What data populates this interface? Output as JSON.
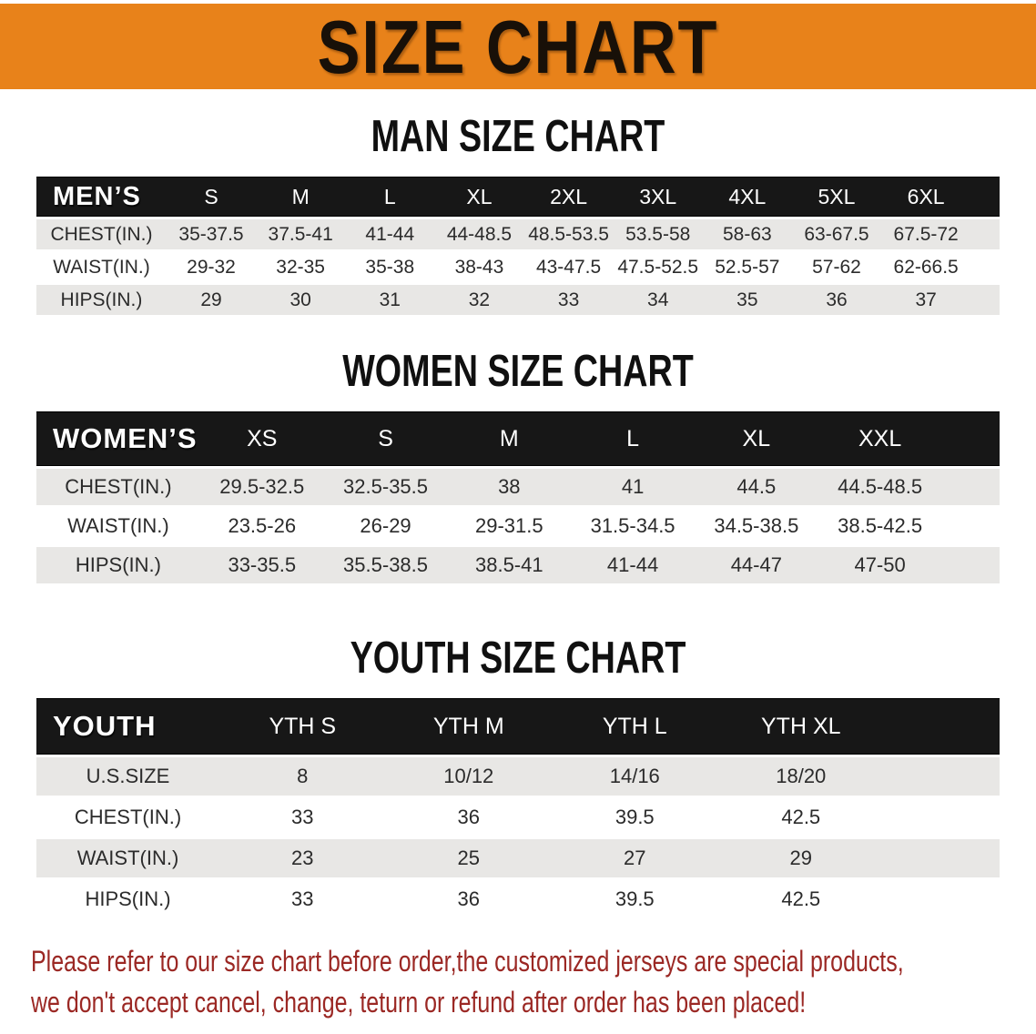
{
  "banner": {
    "title": "SIZE CHART"
  },
  "colors": {
    "banner_bg": "#e8821a",
    "header_bar": "#171717",
    "row_alt": "#e8e7e5",
    "disclaimer_red": "#9b2824"
  },
  "chart_data": [
    {
      "type": "table",
      "title": "MAN SIZE CHART",
      "corner_label": "MEN’S",
      "columns": [
        "S",
        "M",
        "L",
        "XL",
        "2XL",
        "3XL",
        "4XL",
        "5XL",
        "6XL"
      ],
      "rows": [
        {
          "label": "CHEST(IN.)",
          "values": [
            "35-37.5",
            "37.5-41",
            "41-44",
            "44-48.5",
            "48.5-53.5",
            "53.5-58",
            "58-63",
            "63-67.5",
            "67.5-72"
          ]
        },
        {
          "label": "WAIST(IN.)",
          "values": [
            "29-32",
            "32-35",
            "35-38",
            "38-43",
            "43-47.5",
            "47.5-52.5",
            "52.5-57",
            "57-62",
            "62-66.5"
          ]
        },
        {
          "label": "HIPS(IN.)",
          "values": [
            "29",
            "30",
            "31",
            "32",
            "33",
            "34",
            "35",
            "36",
            "37"
          ]
        }
      ]
    },
    {
      "type": "table",
      "title": "WOMEN SIZE CHART",
      "corner_label": "WOMEN’S",
      "columns": [
        "XS",
        "S",
        "M",
        "L",
        "XL",
        "XXL"
      ],
      "rows": [
        {
          "label": "CHEST(IN.)",
          "values": [
            "29.5-32.5",
            "32.5-35.5",
            "38",
            "41",
            "44.5",
            "44.5-48.5"
          ]
        },
        {
          "label": "WAIST(IN.)",
          "values": [
            "23.5-26",
            "26-29",
            "29-31.5",
            "31.5-34.5",
            "34.5-38.5",
            "38.5-42.5"
          ]
        },
        {
          "label": "HIPS(IN.)",
          "values": [
            "33-35.5",
            "35.5-38.5",
            "38.5-41",
            "41-44",
            "44-47",
            "47-50"
          ]
        }
      ]
    },
    {
      "type": "table",
      "title": "YOUTH SIZE CHART",
      "corner_label": "YOUTH",
      "columns": [
        "YTH S",
        "YTH M",
        "YTH L",
        "YTH XL"
      ],
      "rows": [
        {
          "label": "U.S.SIZE",
          "values": [
            "8",
            "10/12",
            "14/16",
            "18/20"
          ]
        },
        {
          "label": "CHEST(IN.)",
          "values": [
            "33",
            "36",
            "39.5",
            "42.5"
          ]
        },
        {
          "label": "WAIST(IN.)",
          "values": [
            "23",
            "25",
            "27",
            "29"
          ]
        },
        {
          "label": "HIPS(IN.)",
          "values": [
            "33",
            "36",
            "39.5",
            "42.5"
          ]
        }
      ]
    }
  ],
  "disclaimer": {
    "line1": "Please refer to our size chart before order,the customized jerseys are special products,",
    "line2": "we don't accept cancel, change, teturn or refund after order has been placed!"
  }
}
